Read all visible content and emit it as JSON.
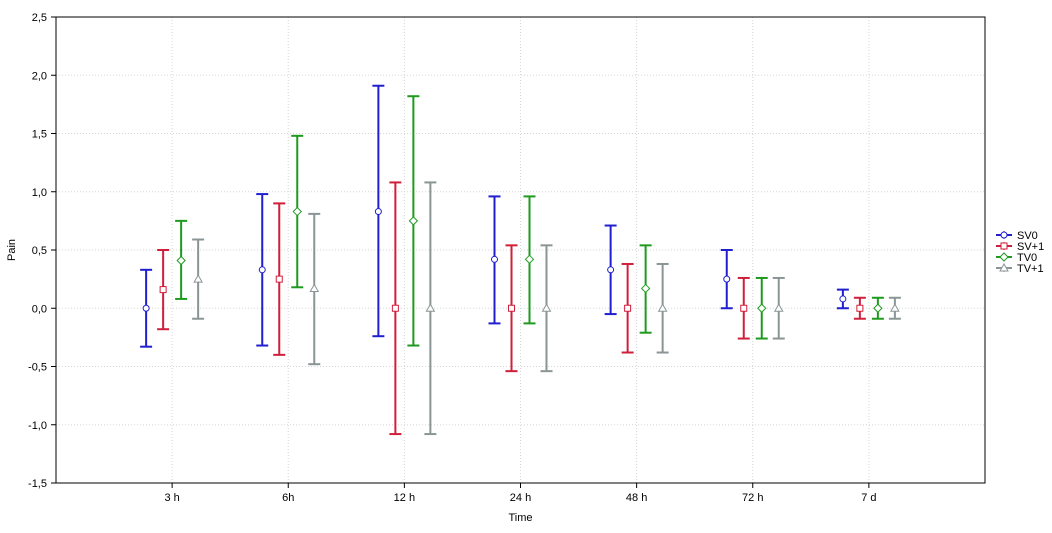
{
  "chart_data": {
    "type": "errorbar",
    "xlabel": "Time",
    "ylabel": "Pain",
    "ylim": [
      -1.5,
      2.5
    ],
    "yticks": [
      "-1,5",
      "-1,0",
      "-0,5",
      "0,0",
      "0,5",
      "1,0",
      "1,5",
      "2,0",
      "2,5"
    ],
    "ytick_values": [
      -1.5,
      -1.0,
      -0.5,
      0.0,
      0.5,
      1.0,
      1.5,
      2.0,
      2.5
    ],
    "categories": [
      "3 h",
      "6h",
      "12 h",
      "24 h",
      "48 h",
      "72 h",
      "7 d"
    ],
    "grid": true,
    "legend_position": "right",
    "series": [
      {
        "name": "SV0",
        "color": "#1f1fd0",
        "marker": "circle",
        "mean": [
          0.0,
          0.33,
          0.83,
          0.42,
          0.33,
          0.25,
          0.08
        ],
        "lower": [
          -0.33,
          -0.32,
          -0.24,
          -0.13,
          -0.05,
          0.0,
          0.0
        ],
        "upper": [
          0.33,
          0.98,
          1.91,
          0.96,
          0.71,
          0.5,
          0.16
        ]
      },
      {
        "name": "SV+1",
        "color": "#d01f3a",
        "marker": "square",
        "mean": [
          0.16,
          0.25,
          0.0,
          0.0,
          0.0,
          0.0,
          0.0
        ],
        "lower": [
          -0.18,
          -0.4,
          -1.08,
          -0.54,
          -0.38,
          -0.26,
          -0.09
        ],
        "upper": [
          0.5,
          0.9,
          1.08,
          0.54,
          0.38,
          0.26,
          0.09
        ]
      },
      {
        "name": "TV0",
        "color": "#1f9a1f",
        "marker": "diamond",
        "mean": [
          0.41,
          0.83,
          0.75,
          0.42,
          0.17,
          0.0,
          0.0
        ],
        "lower": [
          0.08,
          0.18,
          -0.32,
          -0.13,
          -0.21,
          -0.26,
          -0.09
        ],
        "upper": [
          0.75,
          1.48,
          1.82,
          0.96,
          0.54,
          0.26,
          0.09
        ]
      },
      {
        "name": "TV+1",
        "color": "#8a9595",
        "marker": "triangle",
        "mean": [
          0.25,
          0.17,
          0.0,
          0.0,
          0.0,
          0.0,
          0.0
        ],
        "lower": [
          -0.09,
          -0.48,
          -1.08,
          -0.54,
          -0.38,
          -0.26,
          -0.09
        ],
        "upper": [
          0.59,
          0.81,
          1.08,
          0.54,
          0.38,
          0.26,
          0.09
        ]
      }
    ]
  }
}
